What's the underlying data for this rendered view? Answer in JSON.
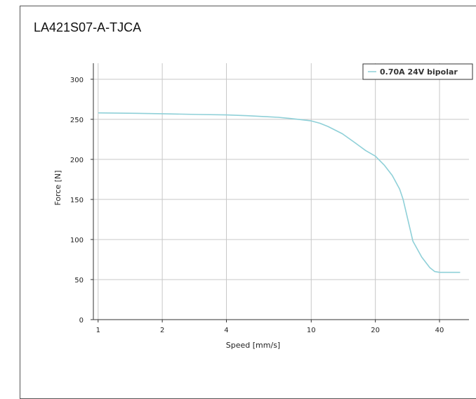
{
  "chart_data": {
    "type": "line",
    "title": "LA421S07-A-TJCA",
    "xlabel": "Speed [mm/s]",
    "ylabel": "Force [N]",
    "xscale": "log",
    "xlim": [
      0.95,
      55
    ],
    "ylim": [
      0,
      320
    ],
    "xticks": [
      1,
      2,
      4,
      10,
      20,
      40
    ],
    "xtick_labels": [
      "1",
      "2",
      "4",
      "10",
      "20",
      "40"
    ],
    "yticks": [
      0,
      50,
      100,
      150,
      200,
      250,
      300
    ],
    "ytick_labels": [
      "0",
      "50",
      "100",
      "150",
      "200",
      "250",
      "300"
    ],
    "grid": true,
    "legend": "top-right",
    "series": [
      {
        "name": "0.70A 24V bipolar",
        "color": "#8fd0d8",
        "x": [
          1,
          1.5,
          2,
          3,
          4,
          5,
          6,
          7,
          8,
          9,
          10,
          11,
          12,
          14,
          16,
          18,
          20,
          22,
          24,
          26,
          27,
          28,
          30,
          33,
          36,
          38,
          40,
          45,
          50
        ],
        "y": [
          258,
          257.5,
          257,
          256,
          255.5,
          254.5,
          253.5,
          252.5,
          251,
          249.5,
          248,
          245,
          241,
          232,
          221,
          211,
          204,
          193,
          180,
          163,
          150,
          132,
          98,
          78,
          65,
          60,
          59,
          59,
          59
        ]
      }
    ]
  }
}
